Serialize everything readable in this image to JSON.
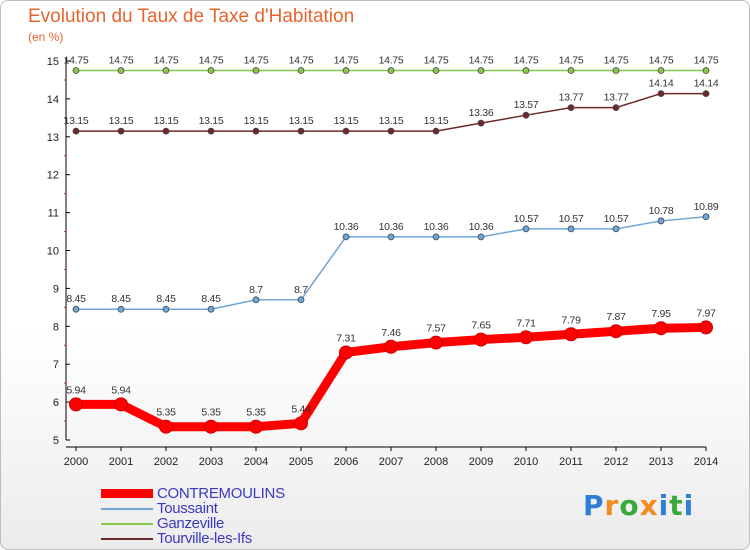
{
  "title": "Evolution du Taux de Taxe d'Habitation",
  "unit_label": "(en %)",
  "brand": "Proxiti",
  "chart_data": {
    "type": "line",
    "x": [
      "2000",
      "2001",
      "2002",
      "2003",
      "2004",
      "2005",
      "2006",
      "2007",
      "2008",
      "2009",
      "2010",
      "2011",
      "2012",
      "2013",
      "2014"
    ],
    "y_ticks": [
      "5",
      "6",
      "7",
      "8",
      "9",
      "10",
      "11",
      "12",
      "13",
      "14",
      "15"
    ],
    "ylim": [
      5,
      15
    ],
    "grid": false,
    "legend_position": "bottom-left",
    "series": [
      {
        "name": "CONTREMOULINS",
        "color": "#ff0000",
        "values": [
          5.94,
          5.94,
          5.35,
          5.35,
          5.35,
          5.44,
          7.31,
          7.46,
          7.57,
          7.65,
          7.71,
          7.79,
          7.87,
          7.95,
          7.97
        ],
        "labels": [
          "5.94",
          "5.94",
          "5.35",
          "5.35",
          "5.35",
          "5.44",
          "7.31",
          "7.46",
          "7.57",
          "7.65",
          "7.71",
          "7.79",
          "7.87",
          "7.95",
          "7.97"
        ]
      },
      {
        "name": "Toussaint",
        "color": "#6ea6d7",
        "values": [
          8.45,
          8.45,
          8.45,
          8.45,
          8.7,
          8.7,
          10.36,
          10.36,
          10.36,
          10.36,
          10.57,
          10.57,
          10.57,
          10.78,
          10.89
        ],
        "labels": [
          "8.45",
          "8.45",
          "8.45",
          "8.45",
          "8.7",
          "8.7",
          "10.36",
          "10.36",
          "10.36",
          "10.36",
          "10.57",
          "10.57",
          "10.57",
          "10.78",
          "10.89"
        ]
      },
      {
        "name": "Ganzeville",
        "color": "#86c84a",
        "values": [
          14.75,
          14.75,
          14.75,
          14.75,
          14.75,
          14.75,
          14.75,
          14.75,
          14.75,
          14.75,
          14.75,
          14.75,
          14.75,
          14.75,
          14.75
        ],
        "labels": [
          "14.75",
          "14.75",
          "14.75",
          "14.75",
          "14.75",
          "14.75",
          "14.75",
          "14.75",
          "14.75",
          "14.75",
          "14.75",
          "14.75",
          "14.75",
          "14.75",
          "14.75"
        ]
      },
      {
        "name": "Tourville-les-Ifs",
        "color": "#6e2a2a",
        "values": [
          13.15,
          13.15,
          13.15,
          13.15,
          13.15,
          13.15,
          13.15,
          13.15,
          13.15,
          13.36,
          13.57,
          13.77,
          13.77,
          14.14,
          14.14
        ],
        "labels": [
          "13.15",
          "13.15",
          "13.15",
          "13.15",
          "13.15",
          "13.15",
          "13.15",
          "13.15",
          "13.15",
          "13.36",
          "13.57",
          "13.77",
          "13.77",
          "14.14",
          "14.14"
        ]
      }
    ]
  }
}
